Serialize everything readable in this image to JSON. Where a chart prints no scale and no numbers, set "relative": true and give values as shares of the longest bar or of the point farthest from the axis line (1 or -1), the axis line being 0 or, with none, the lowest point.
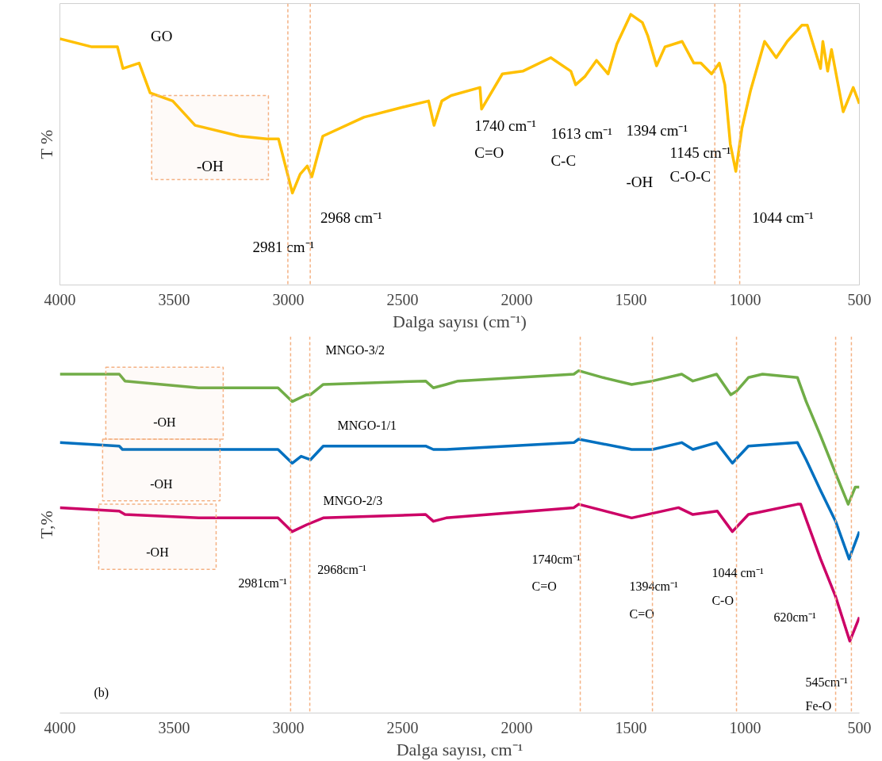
{
  "chart_data": [
    {
      "type": "line",
      "relative": true,
      "xlabel": "Dalga sayısı (cm⁻¹)",
      "ylabel": "T %",
      "xlim": [
        4000,
        500
      ],
      "xticks": [
        4000,
        3500,
        3000,
        2500,
        2000,
        1500,
        1000,
        500
      ],
      "grid": false,
      "series": [
        {
          "color": "#ffc000",
          "x": [
            4000,
            3860,
            3748,
            3724,
            3653,
            3605,
            3506,
            3408,
            3213,
            3094,
            3043,
            2982,
            2948,
            2917,
            2897,
            2849,
            2669,
            2485,
            2386,
            2362,
            2328,
            2287,
            2161,
            2154,
            2063,
            1974,
            1851,
            1763,
            1742,
            1702,
            1651,
            1600,
            1562,
            1501,
            1450,
            1426,
            1388,
            1351,
            1276,
            1225,
            1194,
            1147,
            1113,
            1089,
            1065,
            1041,
            1014,
            976,
            915,
            864,
            816,
            752,
            728,
            670,
            660,
            639,
            622,
            571,
            527,
            500
          ],
          "values": [
            0.91,
            0.88,
            0.88,
            0.8,
            0.82,
            0.71,
            0.68,
            0.59,
            0.55,
            0.54,
            0.54,
            0.34,
            0.41,
            0.44,
            0.4,
            0.55,
            0.62,
            0.66,
            0.68,
            0.59,
            0.68,
            0.7,
            0.73,
            0.65,
            0.78,
            0.79,
            0.84,
            0.79,
            0.74,
            0.77,
            0.83,
            0.78,
            0.89,
            1.0,
            0.97,
            0.92,
            0.81,
            0.88,
            0.9,
            0.82,
            0.82,
            0.78,
            0.82,
            0.74,
            0.52,
            0.42,
            0.58,
            0.72,
            0.9,
            0.84,
            0.9,
            0.96,
            0.96,
            0.8,
            0.9,
            0.79,
            0.87,
            0.64,
            0.73,
            0.67
          ]
        }
      ],
      "ref_lines": [
        {
          "axis": "x",
          "value": 3002,
          "color": "#f4b183",
          "line_style": "dashed"
        },
        {
          "axis": "x",
          "value": 2904,
          "color": "#f4b183",
          "line_style": "dashed"
        },
        {
          "axis": "x",
          "value": 1133,
          "color": "#f4b183",
          "line_style": "dashed"
        },
        {
          "axis": "x",
          "value": 1024,
          "color": "#f4b183",
          "line_style": "dashed"
        }
      ],
      "bands": [
        {
          "axis": "x",
          "from": 3598,
          "to": 3087,
          "color": "#f4b183",
          "label": "-OH"
        }
      ],
      "annotations": [
        "GO",
        "2968 cm⁻¹",
        "2981 cm⁻¹",
        "1740 cm⁻¹",
        "C=O",
        "1613 cm⁻¹",
        "C-C",
        "1394 cm⁻¹",
        "-OH",
        "1145 cm⁻¹",
        "C-O-C",
        "1044 cm⁻¹"
      ]
    },
    {
      "type": "line",
      "relative": true,
      "xlabel": "Dalga sayısı, cm⁻¹",
      "ylabel": "T,%",
      "xlim": [
        4000,
        500
      ],
      "xticks": [
        4000,
        3500,
        3000,
        2500,
        2000,
        1500,
        1000,
        500
      ],
      "grid": false,
      "series": [
        {
          "color": "#70ad47",
          "x": [
            4000,
            3740,
            3715,
            3392,
            3045,
            2983,
            2920,
            2903,
            2847,
            2399,
            2365,
            2309,
            2257,
            1750,
            1729,
            1622,
            1497,
            1406,
            1278,
            1229,
            1125,
            1063,
            1038,
            986,
            924,
            771,
            733,
            670,
            604,
            549,
            518,
            500
          ],
          "values": [
            0.99,
            0.99,
            0.97,
            0.95,
            0.95,
            0.91,
            0.93,
            0.93,
            0.96,
            0.97,
            0.95,
            0.96,
            0.97,
            0.99,
            1.0,
            0.98,
            0.96,
            0.97,
            0.99,
            0.97,
            0.99,
            0.93,
            0.94,
            0.98,
            0.99,
            0.98,
            0.91,
            0.81,
            0.7,
            0.61,
            0.66,
            0.66
          ]
        },
        {
          "color": "#0070c0",
          "x": [
            4000,
            3740,
            3726,
            3292,
            3045,
            2983,
            2944,
            2903,
            2847,
            2399,
            2365,
            2309,
            1750,
            1729,
            1497,
            1406,
            1278,
            1229,
            1125,
            1056,
            986,
            771,
            733,
            670,
            604,
            545,
            500
          ],
          "values": [
            0.79,
            0.78,
            0.77,
            0.77,
            0.77,
            0.73,
            0.75,
            0.74,
            0.78,
            0.78,
            0.77,
            0.77,
            0.79,
            0.8,
            0.77,
            0.77,
            0.79,
            0.77,
            0.79,
            0.73,
            0.78,
            0.79,
            0.74,
            0.65,
            0.56,
            0.45,
            0.53
          ]
        },
        {
          "color": "#cc0066",
          "x": [
            4000,
            3740,
            3715,
            3392,
            3045,
            2983,
            2920,
            2847,
            2399,
            2365,
            2309,
            1750,
            1729,
            1497,
            1292,
            1229,
            1122,
            1056,
            986,
            771,
            757,
            670,
            604,
            542,
            500
          ],
          "values": [
            0.6,
            0.59,
            0.58,
            0.57,
            0.57,
            0.53,
            0.55,
            0.57,
            0.58,
            0.56,
            0.57,
            0.6,
            0.61,
            0.57,
            0.6,
            0.58,
            0.59,
            0.53,
            0.58,
            0.61,
            0.61,
            0.45,
            0.34,
            0.21,
            0.28
          ]
        }
      ],
      "ref_lines": [
        {
          "axis": "x",
          "value": 2990,
          "color": "#f4b183",
          "line_style": "dashed"
        },
        {
          "axis": "x",
          "value": 2906,
          "color": "#f4b183",
          "line_style": "dashed"
        },
        {
          "axis": "x",
          "value": 1722,
          "color": "#f4b183",
          "line_style": "dashed"
        },
        {
          "axis": "x",
          "value": 1406,
          "color": "#f4b183",
          "line_style": "dashed"
        },
        {
          "axis": "x",
          "value": 1038,
          "color": "#f4b183",
          "line_style": "dashed"
        },
        {
          "axis": "x",
          "value": 604,
          "color": "#f4b183",
          "line_style": "dashed"
        },
        {
          "axis": "x",
          "value": 535,
          "color": "#f4b183",
          "line_style": "dashed"
        }
      ],
      "bands": [
        {
          "axis": "x",
          "from": 3799,
          "to": 3285,
          "color": "#f4b183",
          "label": "-OH"
        },
        {
          "axis": "x",
          "from": 3813,
          "to": 3299,
          "color": "#f4b183",
          "label": "-OH"
        },
        {
          "axis": "x",
          "from": 3830,
          "to": 3316,
          "color": "#f4b183",
          "label": "-OH"
        }
      ],
      "annotations": [
        "MNGO-3/2",
        "MNGO-1/1",
        "MNGO-2/3",
        "2981cm⁻¹",
        "2968cm⁻¹",
        "1740cm⁻¹",
        "C=O",
        "1394cm⁻¹",
        "C=O",
        "1044 cm⁻¹",
        "C-O",
        "620cm⁻¹",
        "545cm⁻¹",
        "Fe-O",
        "(b)"
      ]
    }
  ]
}
